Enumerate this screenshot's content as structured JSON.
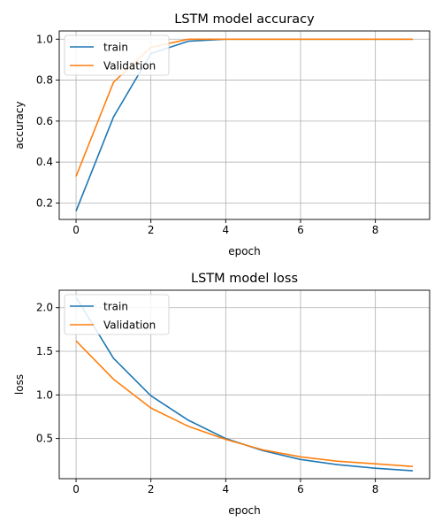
{
  "chart_data": [
    {
      "type": "line",
      "title": "LSTM model accuracy",
      "xlabel": "epoch",
      "ylabel": "accuracy",
      "xlim": [
        -0.45,
        9.45
      ],
      "ylim": [
        0.12,
        1.04
      ],
      "xticks": [
        0,
        2,
        4,
        6,
        8
      ],
      "xtick_labels": [
        "0",
        "2",
        "4",
        "6",
        "8"
      ],
      "yticks": [
        0.2,
        0.4,
        0.6,
        0.8,
        1.0
      ],
      "ytick_labels": [
        "0.2",
        "0.4",
        "0.6",
        "0.8",
        "1.0"
      ],
      "grid": true,
      "legend_position": "top-left",
      "x": [
        0,
        1,
        2,
        3,
        4,
        5,
        6,
        7,
        8,
        9
      ],
      "series": [
        {
          "name": "train",
          "color": "#1f77b4",
          "values": [
            0.16,
            0.62,
            0.93,
            0.99,
            1.0,
            1.0,
            1.0,
            1.0,
            1.0,
            1.0
          ]
        },
        {
          "name": "Validation",
          "color": "#ff7f0e",
          "values": [
            0.33,
            0.79,
            0.96,
            1.0,
            1.0,
            1.0,
            1.0,
            1.0,
            1.0,
            1.0
          ]
        }
      ]
    },
    {
      "type": "line",
      "title": "LSTM model loss",
      "xlabel": "epoch",
      "ylabel": "loss",
      "xlim": [
        -0.45,
        9.45
      ],
      "ylim": [
        0.04,
        2.2
      ],
      "xticks": [
        0,
        2,
        4,
        6,
        8
      ],
      "xtick_labels": [
        "0",
        "2",
        "4",
        "6",
        "8"
      ],
      "yticks": [
        0.5,
        1.0,
        1.5,
        2.0
      ],
      "ytick_labels": [
        "0.5",
        "1.0",
        "1.5",
        "2.0"
      ],
      "grid": true,
      "legend_position": "top-left",
      "x": [
        0,
        1,
        2,
        3,
        4,
        5,
        6,
        7,
        8,
        9
      ],
      "series": [
        {
          "name": "train",
          "color": "#1f77b4",
          "values": [
            2.12,
            1.42,
            0.99,
            0.71,
            0.5,
            0.36,
            0.26,
            0.2,
            0.16,
            0.13
          ]
        },
        {
          "name": "Validation",
          "color": "#ff7f0e",
          "values": [
            1.62,
            1.18,
            0.85,
            0.64,
            0.49,
            0.37,
            0.29,
            0.24,
            0.21,
            0.18
          ]
        }
      ]
    }
  ]
}
